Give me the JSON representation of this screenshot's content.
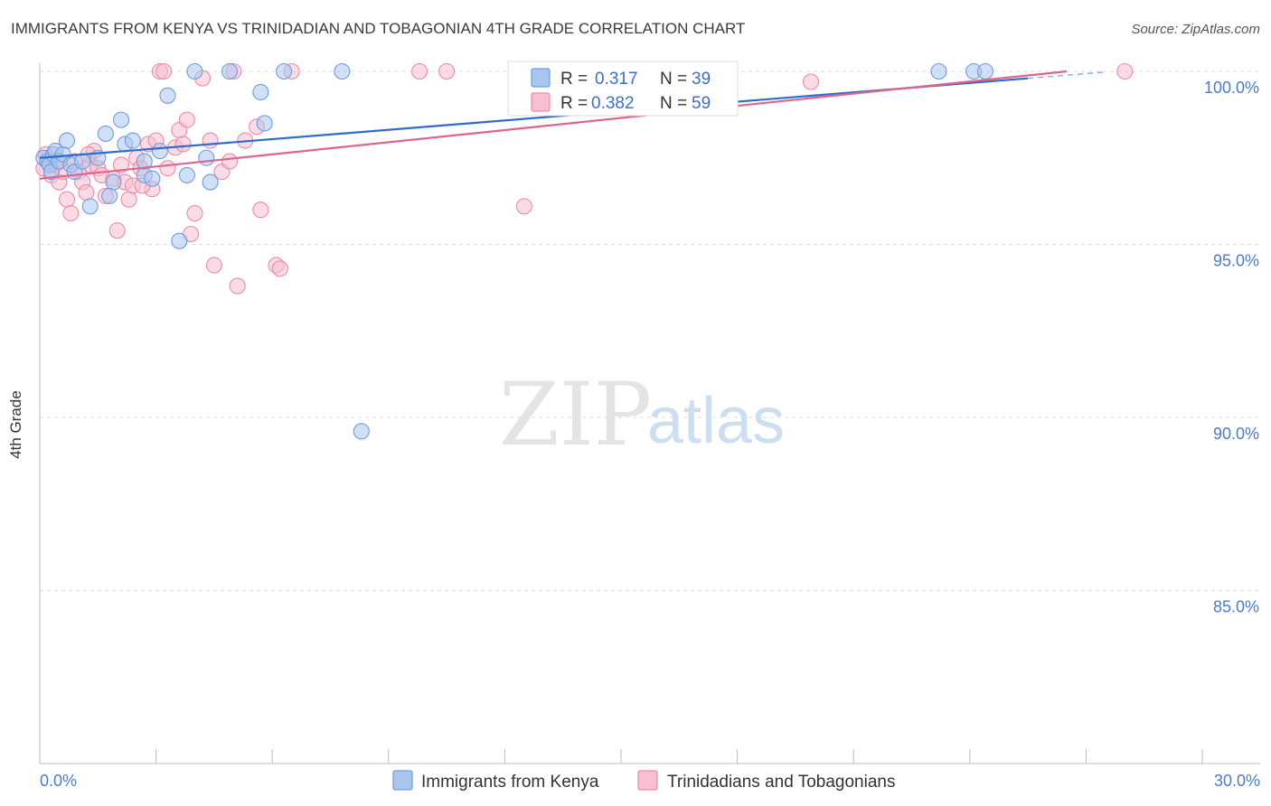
{
  "chart_data": {
    "type": "scatter",
    "title": "IMMIGRANTS FROM KENYA VS TRINIDADIAN AND TOBAGONIAN 4TH GRADE CORRELATION CHART",
    "source": "Source: ZipAtlas.com",
    "xlabel": "",
    "ylabel": "4th Grade",
    "xlim": [
      0,
      30
    ],
    "ylim": [
      80.5,
      100.3
    ],
    "x_tick_labels": [
      "0.0%",
      "30.0%"
    ],
    "y_ticks": [
      100,
      95,
      90,
      85
    ],
    "y_tick_labels": [
      "100.0%",
      "95.0%",
      "90.0%",
      "85.0%"
    ],
    "legend_position": "bottom",
    "watermark": {
      "zip": "ZIP",
      "atlas": "atlas"
    },
    "series": [
      {
        "name": "Immigrants from Kenya",
        "color": "#6f9ce0",
        "fill": "#a9c6ef",
        "R": "0.317",
        "N": "39",
        "trend": {
          "x": [
            0,
            25.5
          ],
          "y": [
            97.5,
            99.8
          ]
        },
        "points": [
          [
            0.1,
            97.5
          ],
          [
            0.2,
            97.4
          ],
          [
            0.25,
            97.3
          ],
          [
            0.3,
            97.1
          ],
          [
            0.35,
            97.6
          ],
          [
            0.4,
            97.7
          ],
          [
            0.5,
            97.4
          ],
          [
            0.6,
            97.6
          ],
          [
            0.7,
            98.0
          ],
          [
            0.8,
            97.3
          ],
          [
            0.9,
            97.1
          ],
          [
            1.1,
            97.4
          ],
          [
            1.3,
            96.1
          ],
          [
            1.5,
            97.5
          ],
          [
            1.7,
            98.2
          ],
          [
            1.9,
            96.8
          ],
          [
            2.1,
            98.6
          ],
          [
            2.2,
            97.9
          ],
          [
            2.4,
            98.0
          ],
          [
            2.7,
            97.0
          ],
          [
            2.9,
            96.9
          ],
          [
            3.1,
            97.7
          ],
          [
            3.3,
            99.3
          ],
          [
            3.6,
            95.1
          ],
          [
            3.8,
            97.0
          ],
          [
            4.0,
            100.0
          ],
          [
            4.3,
            97.5
          ],
          [
            4.4,
            96.8
          ],
          [
            4.9,
            100.0
          ],
          [
            5.7,
            99.4
          ],
          [
            5.8,
            98.5
          ],
          [
            6.3,
            100.0
          ],
          [
            7.8,
            100.0
          ],
          [
            8.3,
            89.6
          ],
          [
            23.2,
            100.0
          ],
          [
            24.1,
            100.0
          ],
          [
            24.4,
            100.0
          ],
          [
            1.8,
            96.4
          ],
          [
            2.7,
            97.4
          ]
        ]
      },
      {
        "name": "Trinidadians and Tobagonians",
        "color": "#ee8aa8",
        "fill": "#f7bfd0",
        "R": "0.382",
        "N": "59",
        "trend": {
          "x": [
            0,
            26.5
          ],
          "y": [
            96.9,
            100.0
          ]
        },
        "points": [
          [
            0.1,
            97.2
          ],
          [
            0.2,
            97.5
          ],
          [
            0.3,
            97.0
          ],
          [
            0.4,
            97.3
          ],
          [
            0.5,
            96.8
          ],
          [
            0.6,
            97.1
          ],
          [
            0.7,
            96.3
          ],
          [
            0.8,
            95.9
          ],
          [
            0.9,
            97.4
          ],
          [
            1.0,
            97.1
          ],
          [
            1.1,
            96.8
          ],
          [
            1.2,
            96.5
          ],
          [
            1.3,
            97.3
          ],
          [
            1.4,
            97.7
          ],
          [
            1.5,
            97.2
          ],
          [
            1.6,
            97.0
          ],
          [
            1.7,
            96.4
          ],
          [
            1.9,
            96.9
          ],
          [
            2.0,
            95.4
          ],
          [
            2.1,
            97.3
          ],
          [
            2.2,
            96.8
          ],
          [
            2.3,
            96.3
          ],
          [
            2.4,
            96.7
          ],
          [
            2.5,
            97.5
          ],
          [
            2.6,
            97.2
          ],
          [
            2.8,
            97.9
          ],
          [
            2.9,
            96.6
          ],
          [
            3.0,
            98.0
          ],
          [
            3.1,
            100.0
          ],
          [
            3.2,
            100.0
          ],
          [
            3.3,
            97.2
          ],
          [
            3.5,
            97.8
          ],
          [
            3.6,
            98.3
          ],
          [
            3.8,
            98.6
          ],
          [
            3.9,
            95.3
          ],
          [
            4.0,
            95.9
          ],
          [
            4.2,
            99.8
          ],
          [
            4.4,
            98.0
          ],
          [
            4.5,
            94.4
          ],
          [
            4.7,
            97.1
          ],
          [
            4.9,
            97.4
          ],
          [
            5.1,
            93.8
          ],
          [
            5.3,
            98.0
          ],
          [
            5.6,
            98.4
          ],
          [
            5.7,
            96.0
          ],
          [
            6.1,
            94.4
          ],
          [
            6.2,
            94.3
          ],
          [
            6.5,
            100.0
          ],
          [
            9.8,
            100.0
          ],
          [
            10.5,
            100.0
          ],
          [
            12.5,
            96.1
          ],
          [
            19.9,
            99.7
          ],
          [
            28.0,
            100.0
          ],
          [
            0.15,
            97.6
          ],
          [
            1.25,
            97.6
          ],
          [
            2.65,
            96.7
          ],
          [
            5.0,
            100.0
          ],
          [
            3.7,
            97.9
          ],
          [
            0.45,
            97.4
          ]
        ]
      }
    ]
  },
  "legend": {
    "r_label": "R =",
    "n_label": "N ="
  }
}
